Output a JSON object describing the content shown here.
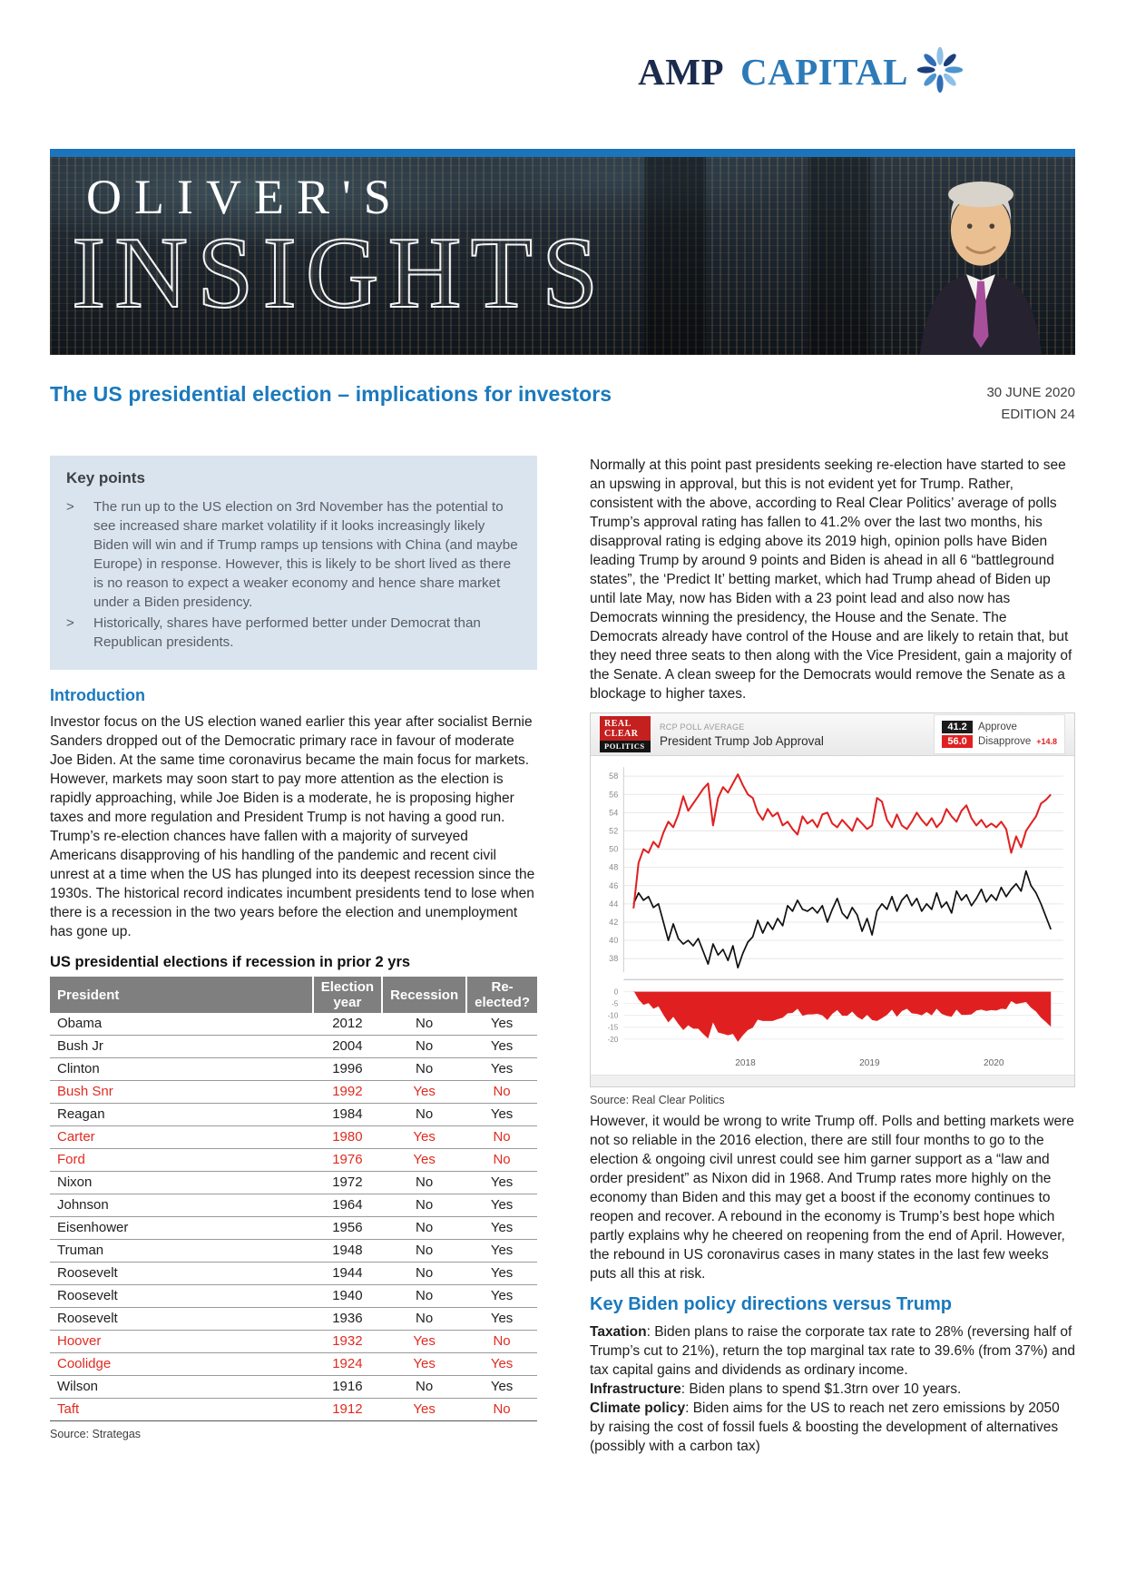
{
  "header": {
    "logo": {
      "part1": "AMP",
      "part2": "CAPITAL",
      "icon": "amp-flower-icon"
    },
    "banner": {
      "line1": "OLIVER'S",
      "line2": "INSIGHTS"
    }
  },
  "title_bar": {
    "title": "The US presidential election – implications for investors",
    "date": "30 JUNE 2020",
    "edition": "EDITION 24"
  },
  "key_points": {
    "heading": "Key points",
    "bullets": [
      "The run up to the US election on 3rd November has the potential to see increased share market volatility if it looks increasingly likely Biden will win and if Trump ramps up tensions with China (and maybe Europe) in response. However, this is likely to be short lived as there is no reason to expect a weaker economy and hence share market under a Biden presidency.",
      "Historically, shares have performed better under Democrat than Republican presidents."
    ]
  },
  "left_column": {
    "intro_heading": "Introduction",
    "intro_text": "Investor focus on the US election waned earlier this year after socialist Bernie Sanders dropped out of the Democratic primary race in favour of moderate Joe Biden. At the same time coronavirus became the main focus for markets. However, markets may soon start to pay more attention as the election is rapidly approaching, while Joe Biden is a moderate, he is proposing higher taxes and more regulation and President Trump is not having a good run. Trump’s re-election chances have fallen with a majority of surveyed Americans disapproving of his handling of the pandemic and recent civil unrest at a time when the US has plunged into its deepest recession since the 1930s. The historical record indicates incumbent presidents tend to lose when there is a recession in the two years before the election and unemployment has gone up.",
    "table_title": "US presidential elections if recession in prior 2 yrs",
    "table": {
      "columns": [
        "President",
        "Election year",
        "Recession",
        "Re-elected?"
      ],
      "rows": [
        {
          "president": "Obama",
          "year": "2012",
          "recession": "No",
          "reelected": "Yes",
          "highlight": false
        },
        {
          "president": "Bush Jr",
          "year": "2004",
          "recession": "No",
          "reelected": "Yes",
          "highlight": false
        },
        {
          "president": "Clinton",
          "year": "1996",
          "recession": "No",
          "reelected": "Yes",
          "highlight": false
        },
        {
          "president": "Bush Snr",
          "year": "1992",
          "recession": "Yes",
          "reelected": "No",
          "highlight": true
        },
        {
          "president": "Reagan",
          "year": "1984",
          "recession": "No",
          "reelected": "Yes",
          "highlight": false
        },
        {
          "president": "Carter",
          "year": "1980",
          "recession": "Yes",
          "reelected": "No",
          "highlight": true
        },
        {
          "president": "Ford",
          "year": "1976",
          "recession": "Yes",
          "reelected": "No",
          "highlight": true
        },
        {
          "president": "Nixon",
          "year": "1972",
          "recession": "No",
          "reelected": "Yes",
          "highlight": false
        },
        {
          "president": "Johnson",
          "year": "1964",
          "recession": "No",
          "reelected": "Yes",
          "highlight": false
        },
        {
          "president": "Eisenhower",
          "year": "1956",
          "recession": "No",
          "reelected": "Yes",
          "highlight": false
        },
        {
          "president": "Truman",
          "year": "1948",
          "recession": "No",
          "reelected": "Yes",
          "highlight": false
        },
        {
          "president": "Roosevelt",
          "year": "1944",
          "recession": "No",
          "reelected": "Yes",
          "highlight": false
        },
        {
          "president": "Roosevelt",
          "year": "1940",
          "recession": "No",
          "reelected": "Yes",
          "highlight": false
        },
        {
          "president": "Roosevelt",
          "year": "1936",
          "recession": "No",
          "reelected": "Yes",
          "highlight": false
        },
        {
          "president": "Hoover",
          "year": "1932",
          "recession": "Yes",
          "reelected": "No",
          "highlight": true
        },
        {
          "president": "Coolidge",
          "year": "1924",
          "recession": "Yes",
          "reelected": "Yes",
          "highlight": true
        },
        {
          "president": "Wilson",
          "year": "1916",
          "recession": "No",
          "reelected": "Yes",
          "highlight": false
        },
        {
          "president": "Taft",
          "year": "1912",
          "recession": "Yes",
          "reelected": "No",
          "highlight": true
        }
      ]
    },
    "table_source": "Source: Strategas"
  },
  "right_column": {
    "para1": "Normally at this point past presidents seeking re-election have started to see an upswing in approval, but this is not evident yet for Trump. Rather, consistent with the above, according to Real Clear Politics’ average of polls Trump’s approval rating has fallen to 41.2% over the last two months, his disapproval rating is edging above its 2019 high, opinion polls have Biden leading Trump by around 9 points and Biden is ahead in all 6 “battleground states”, the ‘Predict It’ betting market, which had Trump ahead of Biden up until late May, now has Biden with a 23 point lead and also now has Democrats winning the presidency, the House and the Senate. The Democrats already have control of the House and are likely to retain that, but they need three seats to then along with the Vice President, gain a majority of the Senate. A clean sweep for the Democrats would remove the Senate as a blockage to higher taxes.",
    "chart": {
      "logo": {
        "l1": "REAL",
        "l2": "CLEAR",
        "l3": "POLITICS"
      },
      "kicker": "RCP POLL AVERAGE",
      "title": "President Trump Job Approval",
      "legend": [
        {
          "value": "41.2",
          "label": "Approve",
          "color": "#1a1a1a"
        },
        {
          "value": "56.0",
          "label": "Disapprove",
          "color": "#e02020",
          "delta": "+14.8"
        }
      ]
    },
    "chart_source": "Source: Real Clear Politics",
    "para2": "However, it would be wrong to write Trump off. Polls and betting markets were not so reliable in the 2016 election, there are still four months to go to the election & ongoing civil unrest could see him garner support as a “law and order president” as Nixon did in 1968. And Trump rates more highly on the economy than Biden and this may get a boost if the economy continues to reopen and recover. A rebound in the economy is Trump’s best hope which partly explains why he cheered on reopening from the end of April. However, the rebound in US coronavirus cases in many states in the last few weeks puts all this at risk.",
    "policy_heading": "Key Biden policy directions versus Trump",
    "policy_items": [
      {
        "label": "Taxation",
        "text": ": Biden plans to raise the corporate tax rate to 28% (reversing half of Trump’s cut to 21%), return the top marginal tax rate to 39.6% (from 37%) and tax capital gains and dividends as ordinary income."
      },
      {
        "label": "Infrastructure",
        "text": ": Biden plans to spend $1.3trn over 10 years."
      },
      {
        "label": "Climate policy",
        "text": ": Biden aims for the US to reach net zero emissions by 2050 by raising the cost of fossil fuels & boosting the development of alternatives (possibly with a carbon tax)"
      }
    ]
  },
  "chart_data": {
    "type": "line",
    "title": "President Trump Job Approval",
    "subtitle": "RCP POLL AVERAGE",
    "x_points": {
      "start": 2017.1,
      "step": 0.04,
      "n": 85,
      "unit": "decimal year"
    },
    "series": [
      {
        "name": "Approve",
        "color": "#111111",
        "values": [
          44.0,
          45.2,
          44.4,
          44.8,
          43.6,
          44.0,
          42.0,
          40.0,
          41.8,
          40.2,
          39.6,
          40.0,
          39.4,
          40.2,
          38.8,
          37.4,
          39.6,
          38.4,
          39.0,
          37.8,
          39.4,
          37.0,
          38.6,
          39.8,
          40.4,
          42.2,
          40.8,
          42.0,
          41.2,
          42.4,
          41.6,
          43.8,
          43.2,
          44.4,
          43.4,
          43.2,
          43.6,
          43.0,
          43.8,
          42.0,
          43.4,
          44.6,
          43.0,
          42.4,
          43.6,
          42.8,
          41.0,
          42.4,
          40.6,
          43.2,
          44.0,
          43.4,
          44.8,
          43.2,
          44.4,
          45.0,
          43.8,
          44.6,
          43.2,
          44.0,
          43.4,
          45.2,
          43.6,
          44.2,
          43.0,
          45.4,
          44.4,
          45.0,
          43.8,
          44.6,
          45.6,
          44.2,
          45.0,
          44.4,
          45.8,
          44.8,
          45.6,
          46.2,
          45.4,
          47.6,
          46.0,
          45.2,
          44.0,
          42.6,
          41.2
        ]
      },
      {
        "name": "Disapprove",
        "color": "#e02020",
        "values": [
          43.5,
          48.5,
          50.0,
          49.6,
          50.8,
          50.2,
          51.8,
          53.0,
          52.4,
          53.8,
          55.8,
          54.2,
          55.0,
          55.8,
          56.6,
          57.2,
          52.6,
          55.6,
          56.8,
          56.2,
          57.2,
          58.2,
          57.0,
          56.0,
          55.6,
          54.0,
          53.2,
          54.4,
          53.6,
          54.0,
          52.6,
          53.0,
          52.2,
          51.6,
          53.6,
          52.8,
          53.2,
          52.4,
          53.8,
          54.0,
          52.8,
          52.4,
          53.2,
          52.6,
          52.0,
          53.4,
          52.8,
          52.2,
          52.6,
          55.6,
          55.2,
          53.2,
          52.4,
          53.8,
          52.6,
          52.2,
          53.0,
          54.0,
          53.2,
          52.6,
          53.4,
          52.4,
          53.0,
          54.4,
          53.6,
          53.0,
          54.2,
          54.8,
          53.4,
          52.6,
          53.2,
          52.4,
          52.8,
          52.4,
          53.0,
          52.2,
          49.6,
          51.4,
          50.2,
          52.0,
          52.8,
          53.6,
          55.0,
          55.4,
          56.0
        ]
      }
    ],
    "spread_panel": {
      "name": "Approve minus Disapprove",
      "derived_from": "Approve - Disapprove",
      "fill_color": "#e02020",
      "ylim": [
        -22,
        2
      ],
      "yticks": [
        0,
        -5,
        -10,
        -15,
        -20
      ]
    },
    "ylim_main": [
      36.5,
      59
    ],
    "yticks_main": [
      38,
      40,
      42,
      44,
      46,
      48,
      50,
      52,
      54,
      56,
      58
    ],
    "x_ticks": [
      2018,
      2019,
      2020
    ],
    "grid": true,
    "legend_position": "top-right",
    "current": {
      "approve": 41.2,
      "disapprove": 56.0,
      "spread": -14.8
    }
  }
}
